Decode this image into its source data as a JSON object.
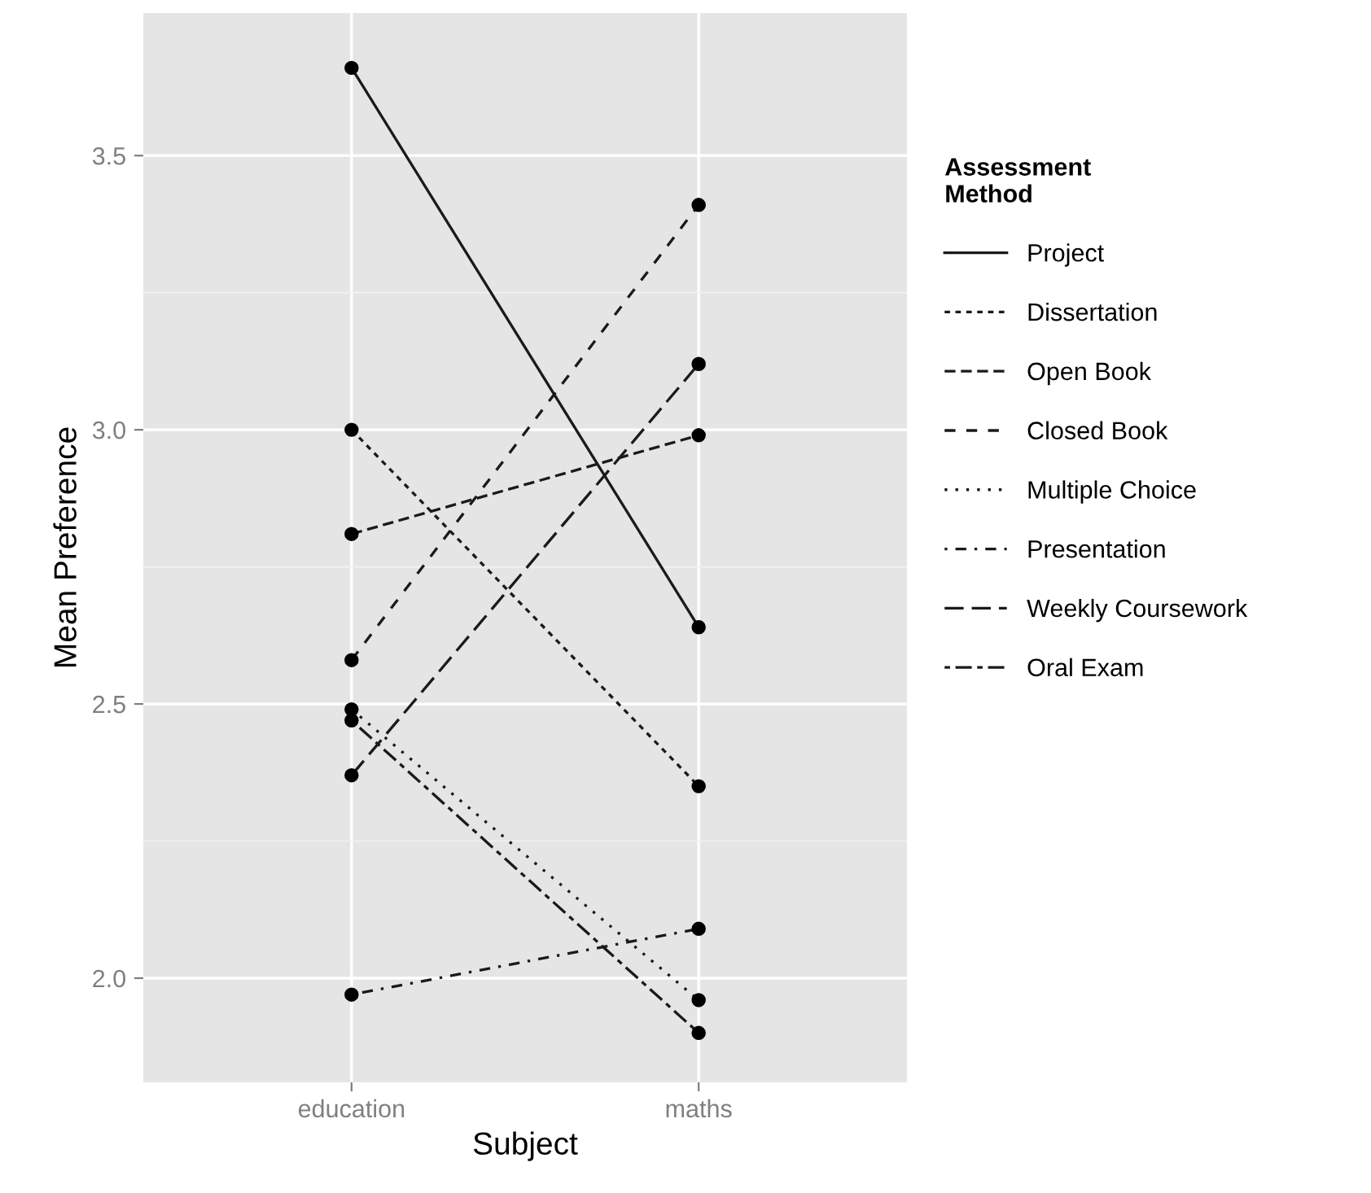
{
  "chart_data": {
    "type": "line",
    "xlabel": "Subject",
    "ylabel": "Mean Preference",
    "legend_title": "Assessment\nMethod",
    "categories": [
      "education",
      "maths"
    ],
    "series": [
      {
        "name": "Project",
        "color": "#1a1a1a",
        "line_style": "solid",
        "values": [
          3.66,
          2.64
        ]
      },
      {
        "name": "Dissertation",
        "color": "#1a1a1a",
        "line_style": "22",
        "values": [
          3.0,
          2.35
        ]
      },
      {
        "name": "Open Book",
        "color": "#1a1a1a",
        "line_style": "42",
        "values": [
          2.81,
          2.99
        ]
      },
      {
        "name": "Closed Book",
        "color": "#1a1a1a",
        "line_style": "44",
        "values": [
          2.58,
          3.41
        ]
      },
      {
        "name": "Multiple Choice",
        "color": "#1a1a1a",
        "line_style": "13",
        "values": [
          2.49,
          1.96
        ]
      },
      {
        "name": "Presentation",
        "color": "#1a1a1a",
        "line_style": "1343",
        "values": [
          1.97,
          2.09
        ]
      },
      {
        "name": "Weekly Coursework",
        "color": "#1a1a1a",
        "line_style": "73",
        "values": [
          2.37,
          3.12
        ]
      },
      {
        "name": "Oral Exam",
        "color": "#1a1a1a",
        "line_style": "2262",
        "values": [
          2.47,
          1.9
        ]
      }
    ],
    "ylim": [
      1.81,
      3.76
    ],
    "yticks": [
      {
        "value": 2,
        "label": "2.0"
      },
      2.5,
      {
        "value": 3,
        "label": "3.0"
      },
      3.5
    ],
    "grid": true,
    "legend": "right",
    "marker": "circle"
  }
}
